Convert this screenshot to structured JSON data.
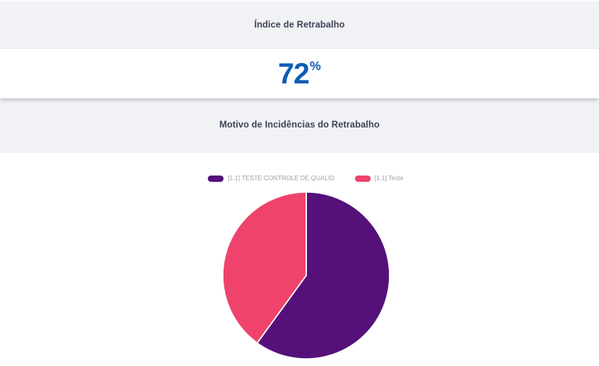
{
  "cards": [
    {
      "header": "Índice de Retrabalho",
      "value": "72",
      "unit": "%"
    },
    {
      "header": "Motivo de Incidências do Retrabalho"
    }
  ],
  "colors": {
    "header_background": "#f1f2f6",
    "header_text": "#3f4254",
    "metric_blue": "#0d5cb6",
    "legend_text": "#a2a2aa",
    "slice_divider": "#ffffff"
  },
  "chart_data": {
    "type": "pie",
    "title": "Motivo de Incidências do Retrabalho",
    "legend_position": "top",
    "start_angle": "12-oclock",
    "direction": "clockwise",
    "slices": [
      {
        "label": "[1.1] TESTE CONTROLE DE QUALID",
        "value": 60,
        "color": "#551179"
      },
      {
        "label": "[1.1] Teste",
        "value": 40,
        "color": "#ef436b"
      }
    ]
  }
}
